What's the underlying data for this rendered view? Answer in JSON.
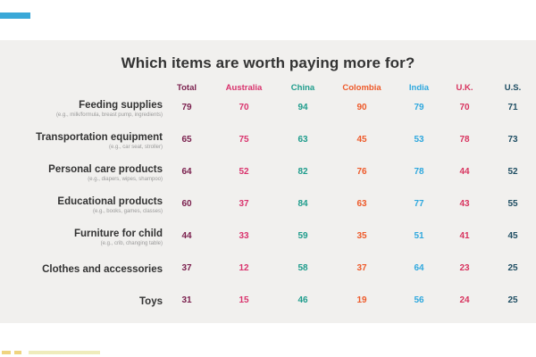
{
  "chart_data": {
    "type": "table",
    "title": "Which items are worth paying more for?",
    "columns": [
      "Total",
      "Australia",
      "China",
      "Colombia",
      "India",
      "U.K.",
      "U.S."
    ],
    "column_colors": [
      "#7a1f4d",
      "#d9336d",
      "#1e9c8c",
      "#ee5a2a",
      "#2fa8de",
      "#d8345f",
      "#1f4e63"
    ],
    "rows": [
      {
        "label": "Feeding supplies",
        "sub": "(e.g., milk/formula, breast pump, ingredients)",
        "values": [
          79,
          70,
          94,
          90,
          79,
          70,
          71
        ]
      },
      {
        "label": "Transportation equipment",
        "sub": "(e.g., car seat, stroller)",
        "values": [
          65,
          75,
          63,
          45,
          53,
          78,
          73
        ]
      },
      {
        "label": "Personal care products",
        "sub": "(e.g., diapers, wipes, shampoo)",
        "values": [
          64,
          52,
          82,
          76,
          78,
          44,
          52
        ]
      },
      {
        "label": "Educational products",
        "sub": "(e.g., books, games, classes)",
        "values": [
          60,
          37,
          84,
          63,
          77,
          43,
          55
        ]
      },
      {
        "label": "Furniture for child",
        "sub": "(e.g., crib, changing table)",
        "values": [
          44,
          33,
          59,
          35,
          51,
          41,
          45
        ]
      },
      {
        "label": "Clothes and accessories",
        "sub": "",
        "values": [
          37,
          12,
          58,
          37,
          64,
          23,
          25
        ]
      },
      {
        "label": "Toys",
        "sub": "",
        "values": [
          31,
          15,
          46,
          19,
          56,
          24,
          25
        ]
      }
    ]
  }
}
